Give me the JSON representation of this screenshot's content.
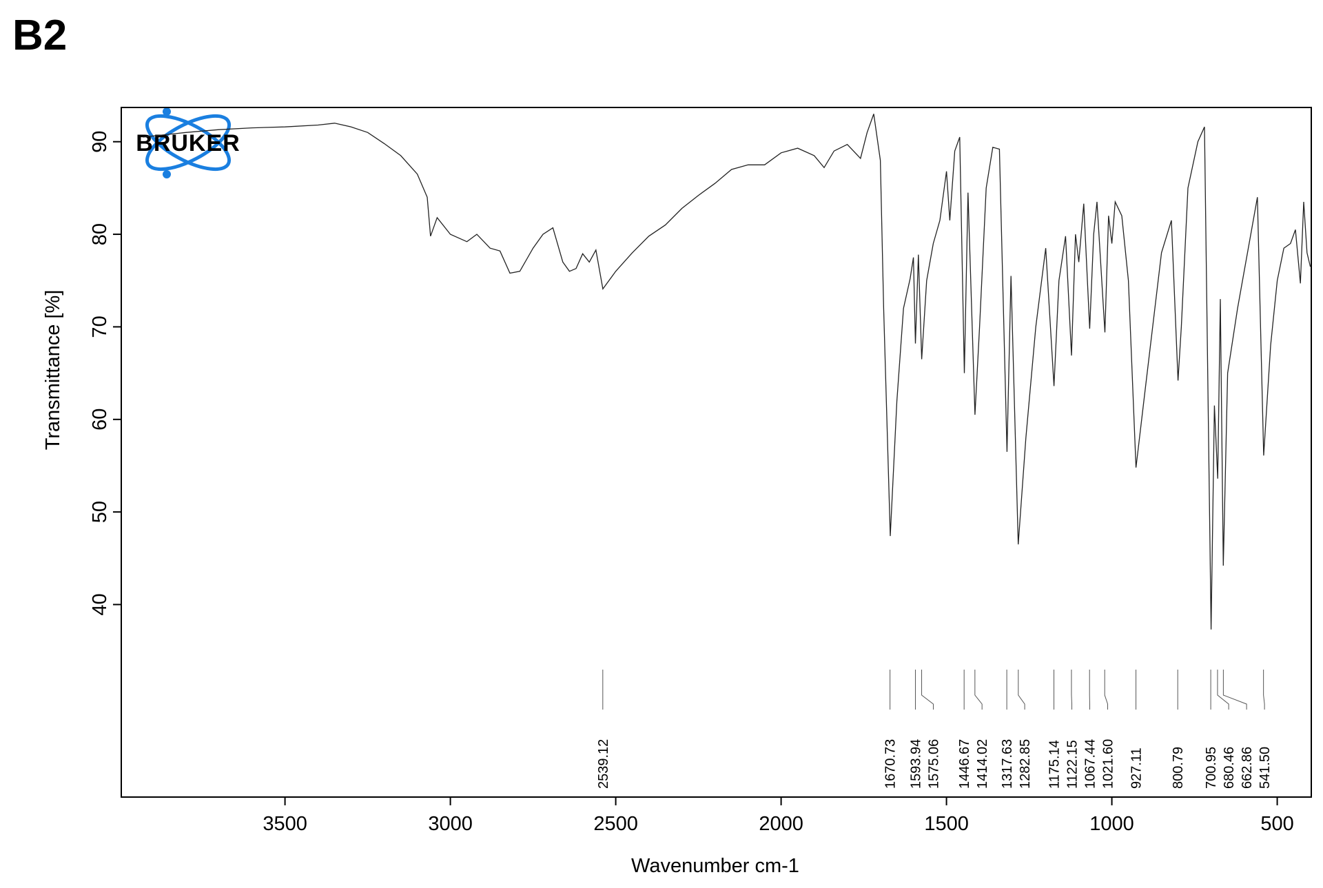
{
  "chart_data": {
    "type": "line",
    "title": "B2",
    "logo": "BRUKER",
    "xlabel": "Wavenumber cm-1",
    "ylabel": "Transmittance [%]",
    "xlim": [
      3995,
      397
    ],
    "ylim": [
      19.2,
      93.7
    ],
    "xticks": [
      3500,
      3000,
      2500,
      2000,
      1500,
      1000,
      500
    ],
    "yticks": [
      40,
      50,
      60,
      70,
      80,
      90
    ],
    "color": "#222222",
    "x": [
      3930,
      3800,
      3700,
      3600,
      3500,
      3400,
      3350,
      3300,
      3250,
      3200,
      3150,
      3100,
      3070,
      3060,
      3040,
      3000,
      2950,
      2920,
      2880,
      2850,
      2820,
      2790,
      2750,
      2720,
      2690,
      2660,
      2640,
      2620,
      2600,
      2580,
      2560,
      2539,
      2500,
      2450,
      2400,
      2350,
      2300,
      2250,
      2200,
      2150,
      2100,
      2050,
      2000,
      1950,
      1900,
      1870,
      1840,
      1800,
      1760,
      1740,
      1720,
      1700,
      1690,
      1670,
      1650,
      1630,
      1610,
      1600,
      1594,
      1585,
      1575,
      1560,
      1540,
      1520,
      1500,
      1490,
      1475,
      1460,
      1446,
      1435,
      1414,
      1400,
      1380,
      1360,
      1340,
      1317,
      1305,
      1283,
      1260,
      1230,
      1200,
      1175,
      1160,
      1140,
      1122,
      1110,
      1100,
      1085,
      1067,
      1055,
      1045,
      1021,
      1010,
      1000,
      990,
      970,
      950,
      927,
      900,
      870,
      850,
      820,
      800,
      790,
      770,
      740,
      720,
      700,
      690,
      680,
      672,
      663,
      650,
      620,
      600,
      580,
      560,
      541,
      520,
      500,
      480,
      460,
      445,
      430,
      420,
      410,
      400
    ],
    "values": [
      90.5,
      91.0,
      91.3,
      91.5,
      91.6,
      91.8,
      92.0,
      91.6,
      91.0,
      89.8,
      88.5,
      86.5,
      84.0,
      79.8,
      81.8,
      80.0,
      79.2,
      80.0,
      78.5,
      78.2,
      75.8,
      76.0,
      78.5,
      80.0,
      80.7,
      77.0,
      76.0,
      76.3,
      77.9,
      77.0,
      78.3,
      74.1,
      76.0,
      78.0,
      79.8,
      81.0,
      82.8,
      84.2,
      85.5,
      87.0,
      87.5,
      87.5,
      88.8,
      89.3,
      88.5,
      87.2,
      89.0,
      89.7,
      88.2,
      91.0,
      93.0,
      88.0,
      72.0,
      47.4,
      62.0,
      72.0,
      75.2,
      77.5,
      68.2,
      77.8,
      66.5,
      75.0,
      79.0,
      81.5,
      86.8,
      81.5,
      89.0,
      90.5,
      65.0,
      84.5,
      60.5,
      70.0,
      85.0,
      89.4,
      89.2,
      56.5,
      75.5,
      46.5,
      58.0,
      70.0,
      78.5,
      63.6,
      75.0,
      79.8,
      66.9,
      80.0,
      77.0,
      83.3,
      69.8,
      80.0,
      83.5,
      69.4,
      82.0,
      79.0,
      83.5,
      82.0,
      75.0,
      54.8,
      63.0,
      72.0,
      78.0,
      81.5,
      64.2,
      70.0,
      85.0,
      90.0,
      91.6,
      37.3,
      61.5,
      53.6,
      73.0,
      44.2,
      65.0,
      72.0,
      76.0,
      80.0,
      84.0,
      56.1,
      68.0,
      75.0,
      78.5,
      79.0,
      80.5,
      74.7,
      83.5,
      78.0,
      76.5
    ],
    "peaks": [
      2539.12,
      1670.73,
      1593.94,
      1575.06,
      1446.67,
      1414.02,
      1317.63,
      1282.85,
      1175.14,
      1122.15,
      1067.44,
      {
        "value": 1021.6,
        "label": "1021.60"
      },
      927.11,
      800.79,
      700.95,
      680.46,
      662.86,
      {
        "value": 541.5,
        "label": "541.50"
      }
    ]
  }
}
